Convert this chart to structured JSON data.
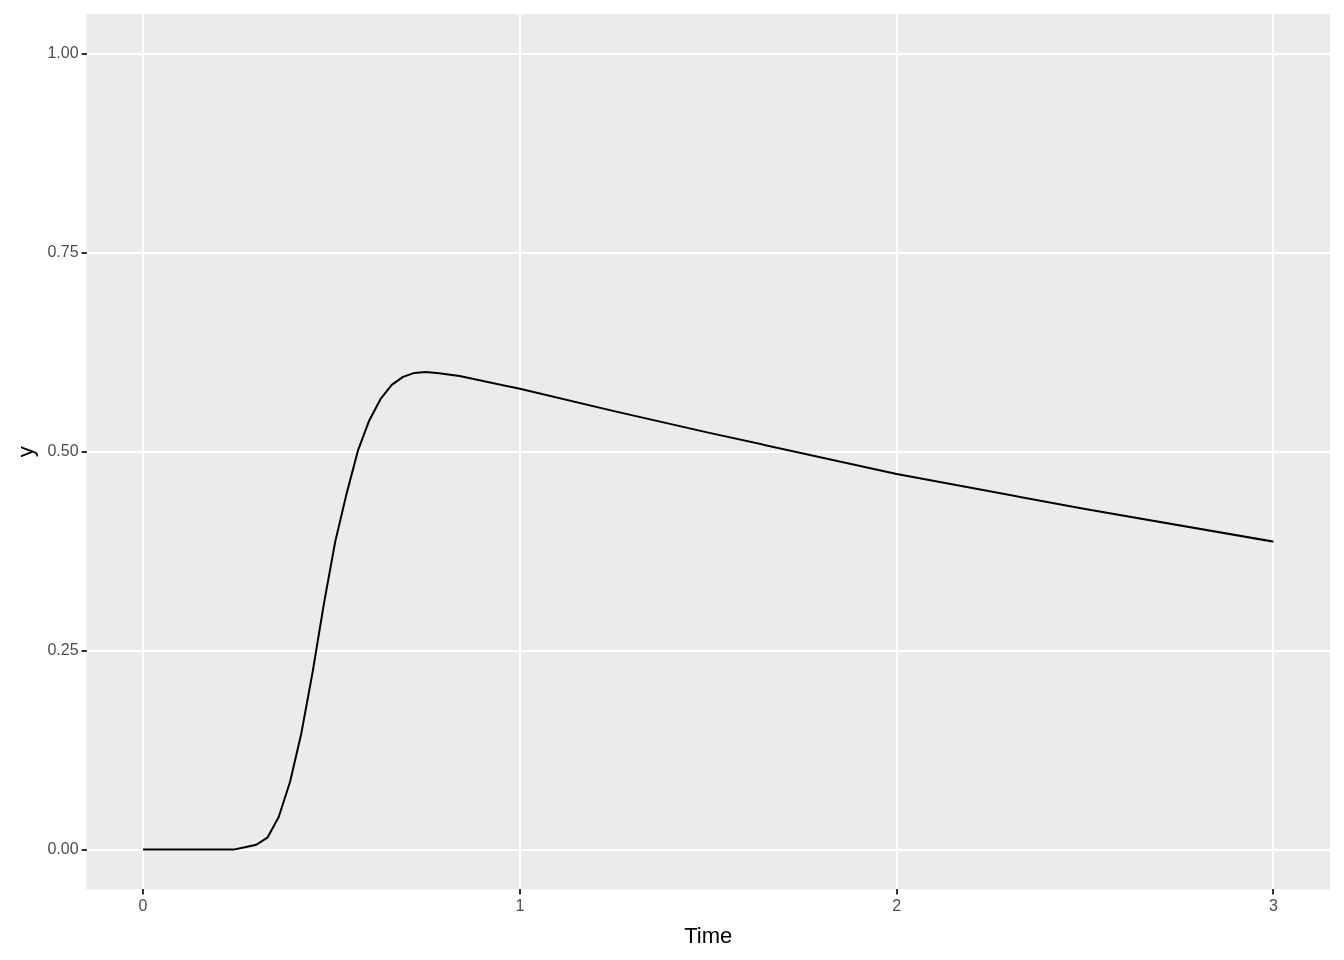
{
  "chart_data": {
    "type": "line",
    "xlabel": "Time",
    "ylabel": "y",
    "x": [
      0,
      0.2,
      0.24,
      0.27,
      0.3,
      0.33,
      0.36,
      0.39,
      0.42,
      0.45,
      0.48,
      0.51,
      0.54,
      0.57,
      0.6,
      0.63,
      0.66,
      0.69,
      0.72,
      0.75,
      0.78,
      0.84,
      1.0,
      1.25,
      1.5,
      2.0,
      2.5,
      3.0
    ],
    "series": [
      {
        "color": "#000000",
        "values": [
          0,
          0,
          0,
          0.003,
          0.006,
          0.015,
          0.041,
          0.085,
          0.146,
          0.223,
          0.309,
          0.387,
          0.447,
          0.501,
          0.539,
          0.566,
          0.584,
          0.594,
          0.599,
          0.6,
          0.599,
          0.595,
          0.579,
          0.551,
          0.524,
          0.472,
          0.428,
          0.387
        ]
      }
    ],
    "xlim": [
      -0.15,
      3.15
    ],
    "ylim": [
      -0.05,
      1.05
    ],
    "xticks": [
      0,
      1,
      2,
      3
    ],
    "yticks": [
      {
        "value": 0,
        "label": "0.00"
      },
      {
        "value": 0.25,
        "label": "0.25"
      },
      {
        "value": 0.5,
        "label": "0.50"
      },
      {
        "value": 0.75,
        "label": "0.75"
      },
      {
        "value": 1,
        "label": "1.00"
      }
    ],
    "grid": true,
    "legend": false,
    "marker": "none",
    "line_style": "solid"
  }
}
